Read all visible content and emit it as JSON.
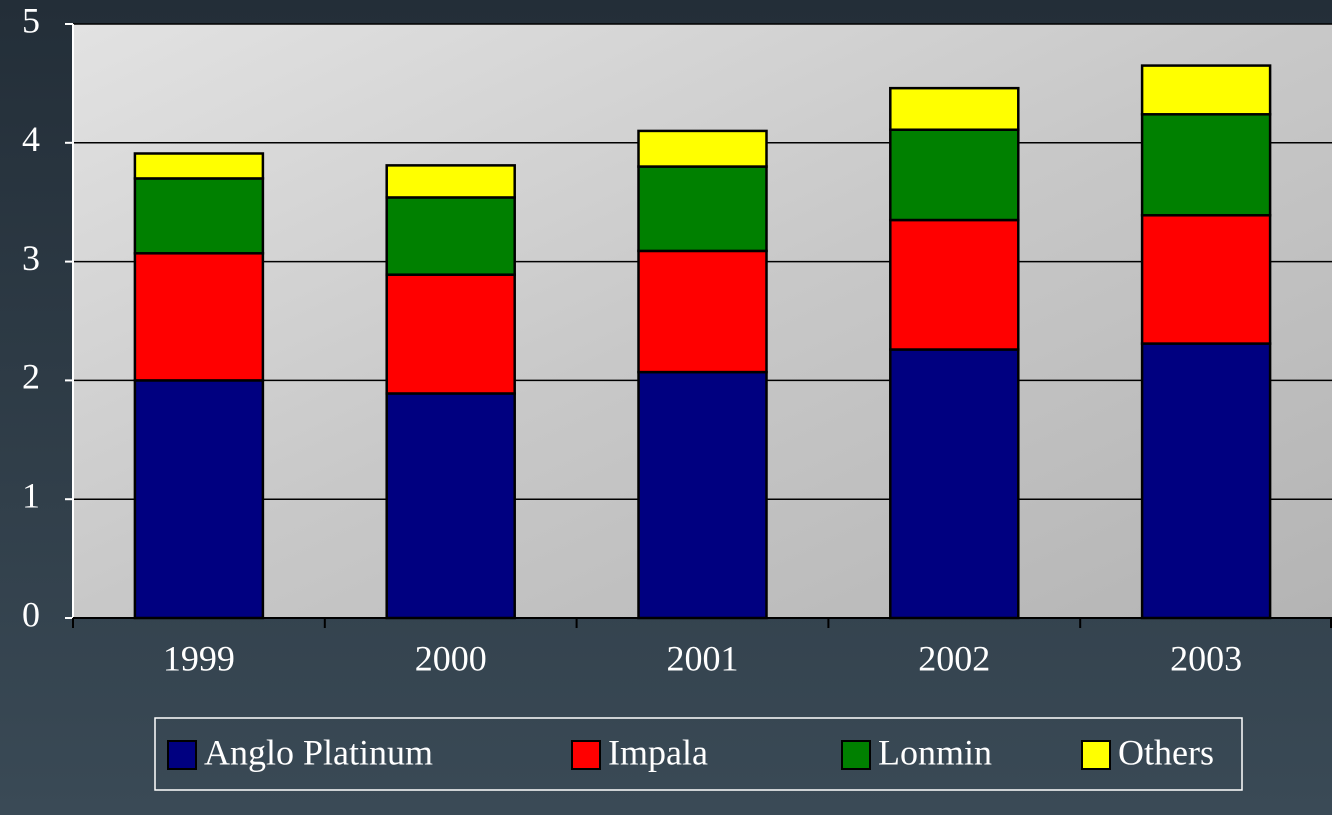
{
  "chart_data": {
    "type": "stacked_bar",
    "categories": [
      "1999",
      "2000",
      "2001",
      "2002",
      "2003"
    ],
    "series": [
      {
        "name": "Anglo Platinum",
        "color": "#000080",
        "values": [
          2.0,
          1.89,
          2.07,
          2.26,
          2.31
        ]
      },
      {
        "name": "Impala",
        "color": "#ff0000",
        "values": [
          1.07,
          1.0,
          1.02,
          1.09,
          1.08
        ]
      },
      {
        "name": "Lonmin",
        "color": "#008000",
        "values": [
          0.63,
          0.65,
          0.71,
          0.76,
          0.85
        ]
      },
      {
        "name": "Others",
        "color": "#ffff00",
        "values": [
          0.21,
          0.27,
          0.3,
          0.35,
          0.41
        ]
      }
    ],
    "ylim": [
      0,
      5
    ],
    "yticks": [
      0,
      1,
      2,
      3,
      4,
      5
    ],
    "grid": true,
    "legend": "bottom"
  }
}
